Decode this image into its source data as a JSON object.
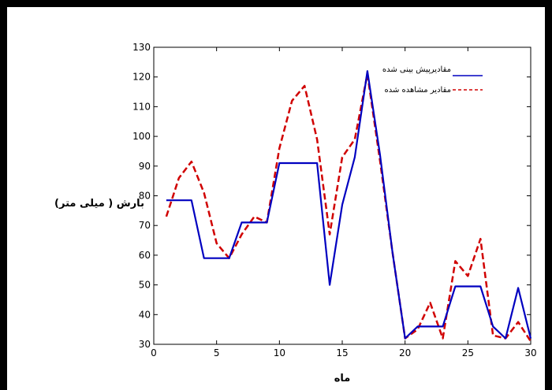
{
  "chart_data": {
    "type": "line",
    "title": "",
    "xlabel": "ماه",
    "ylabel": "بارش ( میلی متر)",
    "xlim": [
      0,
      30
    ],
    "ylim": [
      30,
      130
    ],
    "xticks": [
      0,
      5,
      10,
      15,
      20,
      25,
      30
    ],
    "yticks": [
      30,
      40,
      50,
      60,
      70,
      80,
      90,
      100,
      110,
      120,
      130
    ],
    "grid": false,
    "legend_position": "top-right",
    "x": [
      1,
      2,
      3,
      4,
      5,
      6,
      7,
      8,
      9,
      10,
      11,
      12,
      13,
      14,
      15,
      16,
      17,
      18,
      19,
      20,
      21,
      22,
      23,
      24,
      25,
      26,
      27,
      28,
      29,
      30
    ],
    "series": [
      {
        "name": "مقادیرپیش بینی شده",
        "color": "#0000c0",
        "style": "solid",
        "values": [
          78.5,
          78.5,
          78.5,
          59,
          59,
          59,
          71,
          71,
          71,
          91,
          91,
          91,
          91,
          50,
          77,
          93,
          122,
          94,
          61,
          32,
          36,
          36,
          36,
          49.5,
          49.5,
          49.5,
          36,
          32,
          49,
          32
        ]
      },
      {
        "name": "مقادیر مشاهده شده",
        "color": "#d00000",
        "style": "dashed",
        "values": [
          73,
          86,
          91.5,
          81,
          64,
          59,
          67,
          73,
          71,
          96,
          112,
          117,
          99,
          67,
          93,
          99,
          121,
          92,
          61,
          32,
          35,
          44,
          32,
          58,
          53,
          65.5,
          33,
          32,
          37.5,
          31
        ]
      }
    ]
  }
}
